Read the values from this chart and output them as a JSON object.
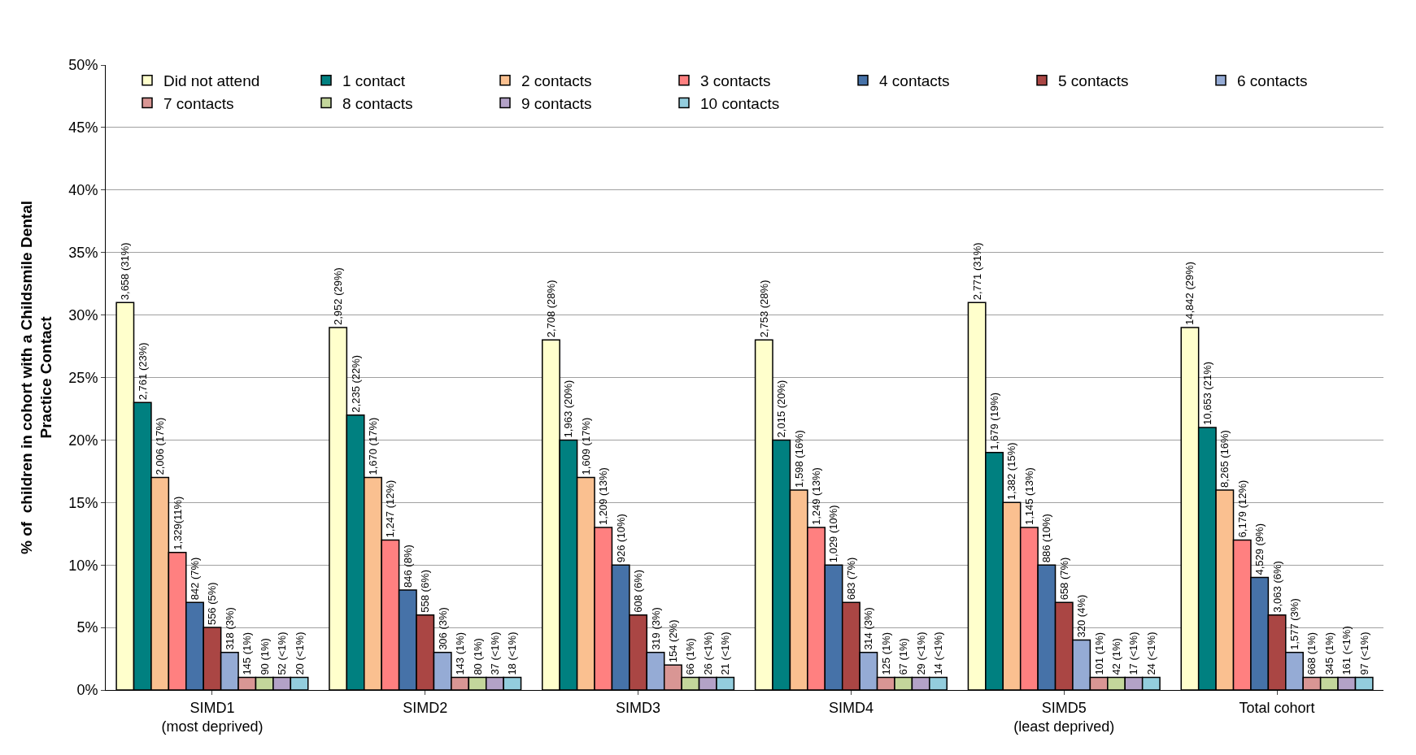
{
  "chart_data": {
    "type": "bar",
    "ylabel": "% of  children in cohort with a Childsmile Dental Practice Contact",
    "categories": [
      "SIMD1\n(most deprived)",
      "SIMD2",
      "SIMD3",
      "SIMD4",
      "SIMD5\n(least deprived)",
      "Total cohort"
    ],
    "ylim": [
      0,
      50
    ],
    "yticks": [
      {
        "value": 0,
        "label": "0%"
      },
      {
        "value": 5,
        "label": "5%"
      },
      {
        "value": 10,
        "label": "10%"
      },
      {
        "value": 15,
        "label": "15%"
      },
      {
        "value": 20,
        "label": "20%"
      },
      {
        "value": 25,
        "label": "25%"
      },
      {
        "value": 30,
        "label": "30%"
      },
      {
        "value": 35,
        "label": "35%"
      },
      {
        "value": 40,
        "label": "40%"
      },
      {
        "value": 45,
        "label": "45%"
      },
      {
        "value": 50,
        "label": "50%"
      }
    ],
    "grid": "y",
    "legend": "top right",
    "series": [
      {
        "name": "Did not attend",
        "color": "#ffffcc",
        "values": [
          31,
          29,
          28,
          28,
          31,
          29
        ],
        "value_labels": [
          "3,658 (31%)",
          "2,952 (29%)",
          "2,708 (28%)",
          "2,753 (28%)",
          "2,771 (31%)",
          "14,842 (29%)"
        ]
      },
      {
        "name": "1 contact",
        "color": "#008080",
        "values": [
          23,
          22,
          20,
          20,
          19,
          21
        ],
        "value_labels": [
          "2,761 (23%)",
          "2,235 (22%)",
          "1,963 (20%)",
          "2,015 (20%)",
          "1,679 (19%)",
          "10,653 (21%)"
        ]
      },
      {
        "name": "2 contacts",
        "color": "#fac090",
        "values": [
          17,
          17,
          17,
          16,
          15,
          16
        ],
        "value_labels": [
          "2,006 (17%)",
          "1,670 (17%)",
          "1,609 (17%)",
          "1,598 (16%)",
          "1,382 (15%)",
          "8,265 (16%)"
        ]
      },
      {
        "name": "3 contacts",
        "color": "#ff8080",
        "values": [
          11,
          12,
          13,
          13,
          13,
          12
        ],
        "value_labels": [
          "1,329(11%)",
          "1,247 (12%)",
          "1,209 (13%)",
          "1,249 (13%)",
          "1,145 (13%)",
          "6,179 (12%)"
        ]
      },
      {
        "name": "4 contacts",
        "color": "#4672a8",
        "values": [
          7,
          8,
          10,
          10,
          10,
          9
        ],
        "value_labels": [
          "842 (7%)",
          "846 (8%)",
          "926 (10%)",
          "1,029 (10%)",
          "886 (10%)",
          "4,529 (9%)"
        ]
      },
      {
        "name": "5 contacts",
        "color": "#aa4644",
        "values": [
          5,
          6,
          6,
          7,
          7,
          6
        ],
        "value_labels": [
          "556 (5%)",
          "558 (6%)",
          "608 (6%)",
          "683 (7%)",
          "658 (7%)",
          "3,063 (6%)"
        ]
      },
      {
        "name": "6 contacts",
        "color": "#95abd5",
        "values": [
          3,
          3,
          3,
          3,
          4,
          3
        ],
        "value_labels": [
          "318 (3%)",
          "306 (3%)",
          "319 (3%)",
          "314 (3%)",
          "320 (4%)",
          "1,577 (3%)"
        ]
      },
      {
        "name": "7 contacts",
        "color": "#d99694",
        "values": [
          1,
          1,
          2,
          1,
          1,
          1
        ],
        "value_labels": [
          "145 (1%)",
          "143 (1%)",
          "154 (2%)",
          "125 (1%)",
          "101 (1%)",
          "668 (1%)"
        ]
      },
      {
        "name": "8 contacts",
        "color": "#c3d69b",
        "values": [
          1,
          1,
          1,
          1,
          1,
          1
        ],
        "value_labels": [
          "90 (1%)",
          "80 (1%)",
          "66 (1%)",
          "67 (1%)",
          "42 (1%)",
          "345 (1%)"
        ]
      },
      {
        "name": "9 contacts",
        "color": "#b3a2c7",
        "values": [
          1,
          1,
          1,
          1,
          1,
          1
        ],
        "value_labels": [
          "52 (<1%)",
          "37 (<1%)",
          "26 (<1%)",
          "29 (<1%)",
          "17 (<1%)",
          "161 (<1%)"
        ]
      },
      {
        "name": "10 contacts",
        "color": "#93cddd",
        "values": [
          1,
          1,
          1,
          1,
          1,
          1
        ],
        "value_labels": [
          "20 (<1%)",
          "18 (<1%)",
          "21 (<1%)",
          "14 (<1%)",
          "24 (<1%)",
          "97 (<1%)"
        ]
      }
    ]
  }
}
